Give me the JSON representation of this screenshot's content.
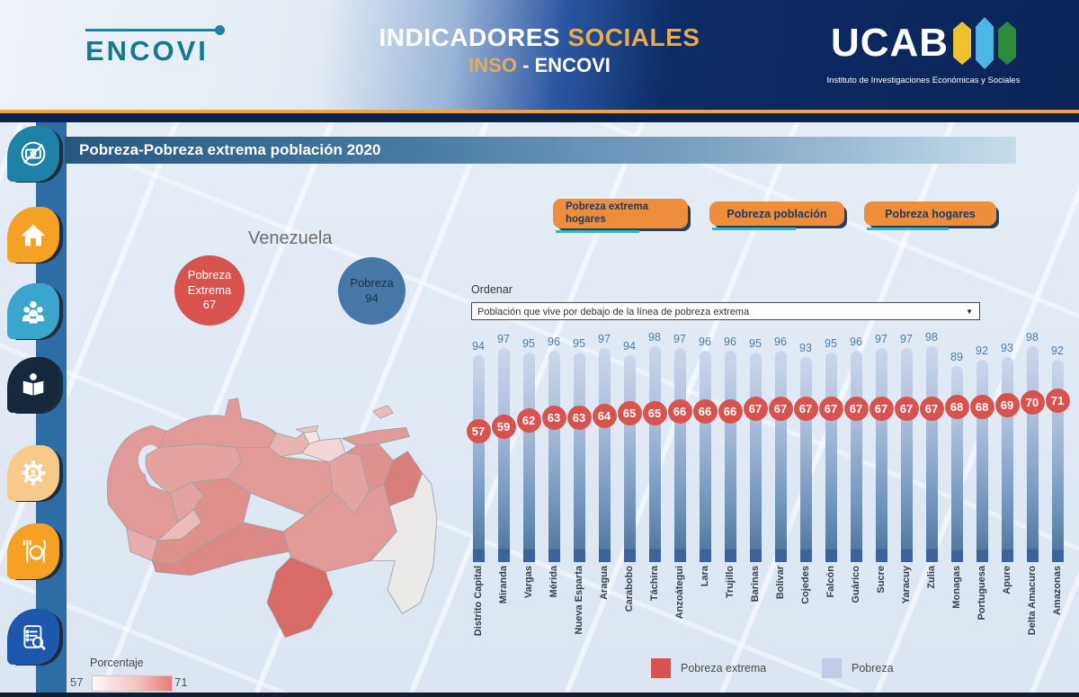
{
  "header": {
    "brand": "ENCOVI",
    "title_part1": "INDICADORES",
    "title_part2": "SOCIALES",
    "subtitle_part1": "INSO",
    "subtitle_part2": "- ENCOVI",
    "ucab": "UCAB",
    "ucab_subtitle": "Instituto de Investigaciones Económicas y Sociales",
    "accent_color": "#eda53c",
    "navy_color": "#0a2458",
    "lozenge_colors": [
      "#f2c12e",
      "#4db8e8",
      "#2e8b3c"
    ]
  },
  "page_title": "Pobreza-Pobreza extrema población 2020",
  "sidebar": {
    "items": [
      {
        "icon": "money-off-icon",
        "color": "#1d81a8"
      },
      {
        "icon": "home-icon",
        "color": "#f5a126"
      },
      {
        "icon": "family-icon",
        "color": "#3aa5cd"
      },
      {
        "icon": "reading-icon",
        "color": "#16293c"
      },
      {
        "icon": "worker-gear-icon",
        "color": "#f7c98b"
      },
      {
        "icon": "food-icon",
        "color": "#f5a126"
      },
      {
        "icon": "report-search-icon",
        "color": "#1e57ae"
      }
    ]
  },
  "map": {
    "country_label": "Venezuela",
    "bubbles": [
      {
        "label_line1": "Pobreza",
        "label_line2": "Extrema",
        "value": "67",
        "color": "#d9534e",
        "text_color": "#ffffff"
      },
      {
        "label_line1": "Pobreza",
        "value": "94",
        "color": "#4677a6",
        "text_color": "#16324f"
      }
    ],
    "scale": {
      "label": "Porcentaje",
      "min": "57",
      "max": "71",
      "min_color": "#fdf6f6",
      "max_color": "#e87b74"
    }
  },
  "filter_buttons": [
    {
      "label": "Pobreza extrema hogares"
    },
    {
      "label": "Pobreza población"
    },
    {
      "label": "Pobreza hogares"
    }
  ],
  "sort": {
    "label": "Ordenar",
    "selected": "Población que vive por debajo de la línea de pobreza extrema"
  },
  "legend": [
    {
      "label": "Pobreza extrema",
      "color": "#d9534e"
    },
    {
      "label": "Pobreza",
      "color": "#c2cbe6"
    }
  ],
  "chart_data": {
    "type": "bar",
    "orientation": "vertical",
    "categories": [
      "Distrito Capital",
      "Miranda",
      "Vargas",
      "Mérida",
      "Nueva Esparta",
      "Aragua",
      "Carabobo",
      "Táchira",
      "Anzoátegui",
      "Lara",
      "Trujillo",
      "Barinas",
      "Bolívar",
      "Cojedes",
      "Falcón",
      "Guárico",
      "Sucre",
      "Yaracuy",
      "Zulia",
      "Monagas",
      "Portuguesa",
      "Apure",
      "Delta Amacuro",
      "Amazonas"
    ],
    "series": [
      {
        "name": "Pobreza",
        "color": "#8fa9cf",
        "values": [
          94,
          97,
          95,
          96,
          95,
          97,
          94,
          98,
          97,
          96,
          96,
          95,
          96,
          93,
          95,
          96,
          97,
          97,
          98,
          89,
          92,
          93,
          98,
          92
        ]
      },
      {
        "name": "Pobreza extrema",
        "color": "#d9534e",
        "values": [
          57,
          59,
          62,
          63,
          63,
          64,
          65,
          65,
          66,
          66,
          66,
          67,
          67,
          67,
          67,
          67,
          67,
          67,
          67,
          68,
          68,
          69,
          70,
          71
        ]
      }
    ],
    "ylim": [
      0,
      100
    ],
    "value_labels": true,
    "grid": false,
    "legend_position": "bottom"
  }
}
